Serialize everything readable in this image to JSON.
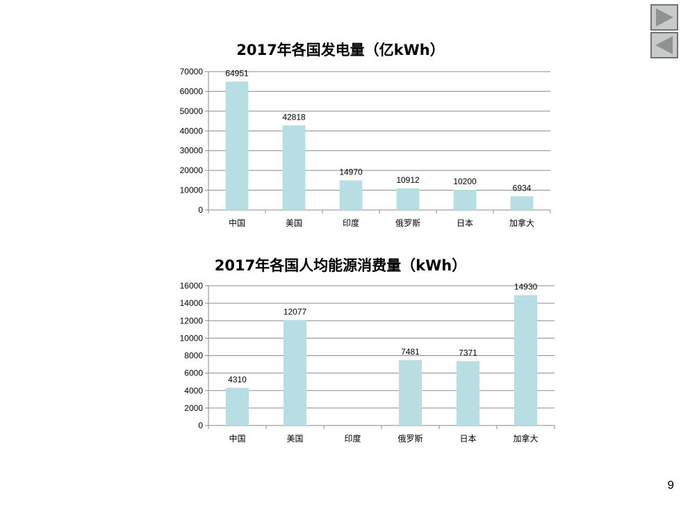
{
  "slide": {
    "page_number": "9"
  },
  "nav": {
    "next_icon": "play-forward-icon",
    "prev_icon": "play-back-icon",
    "color": "#8e9391"
  },
  "chart_data": [
    {
      "type": "bar",
      "title": "2017年各国发电量（亿kWh）",
      "categories": [
        "中国",
        "美国",
        "印度",
        "俄罗斯",
        "日本",
        "加拿大"
      ],
      "values": [
        64951,
        42818,
        14970,
        10912,
        10200,
        6934
      ],
      "data_labels": [
        "64951",
        "42818",
        "14970",
        "10912",
        "10200",
        "6934"
      ],
      "ylim": [
        0,
        70000
      ],
      "yticks": [
        0,
        10000,
        20000,
        30000,
        40000,
        50000,
        60000,
        70000
      ],
      "ytick_labels": [
        "0",
        "10000",
        "20000",
        "30000",
        "40000",
        "50000",
        "60000",
        "70000"
      ],
      "bar_color": "#b7dee3",
      "grid": true,
      "legend": "none"
    },
    {
      "type": "bar",
      "title": "2017年各国人均能源消费量（kWh）",
      "categories": [
        "中国",
        "美国",
        "印度",
        "俄罗斯",
        "日本",
        "加拿大"
      ],
      "values": [
        4310,
        12077,
        null,
        7481,
        7371,
        14930
      ],
      "data_labels": [
        "4310",
        "12077",
        "",
        "7481",
        "7371",
        "14930"
      ],
      "ylim": [
        0,
        16000
      ],
      "yticks": [
        0,
        2000,
        4000,
        6000,
        8000,
        10000,
        12000,
        14000,
        16000
      ],
      "ytick_labels": [
        "0",
        "2000",
        "4000",
        "6000",
        "8000",
        "10000",
        "12000",
        "14000",
        "16000"
      ],
      "bar_color": "#b7dee3",
      "grid": true,
      "legend": "none"
    }
  ]
}
